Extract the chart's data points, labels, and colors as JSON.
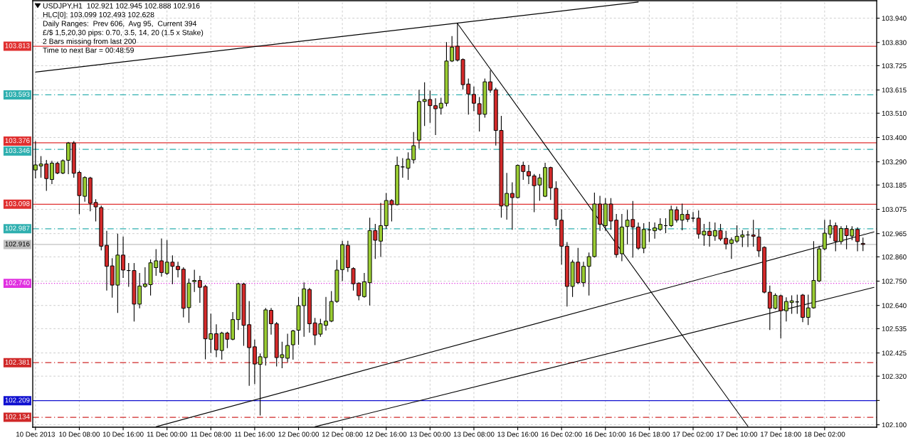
{
  "chart_data": {
    "type": "candlestick",
    "title": "USDJPY,H1  102.921 102.945 102.888 102.916",
    "annotations": [
      "HLC[0]: 103.099 102.493 102.628",
      "Daily Ranges:  Prev 606,  Avg 95,  Current 394",
      "£/$ 1,5,20,30 pips: 0.70, 3.5, 14, 20 (1.5 x Stake)",
      "2 Bars missing from last 200",
      "Time to next Bar = 00:48:59"
    ],
    "categories": [
      "10 Dec 2013",
      null,
      null,
      null,
      null,
      null,
      null,
      null,
      "10 Dec 08:00",
      null,
      null,
      null,
      null,
      null,
      null,
      null,
      "10 Dec 16:00",
      null,
      null,
      null,
      null,
      null,
      null,
      null,
      "11 Dec 00:00",
      null,
      null,
      null,
      null,
      null,
      null,
      null,
      "11 Dec 08:00",
      null,
      null,
      null,
      null,
      null,
      null,
      null,
      "11 Dec 16:00",
      null,
      null,
      null,
      null,
      null,
      null,
      null,
      "12 Dec 00:00",
      null,
      null,
      null,
      null,
      null,
      null,
      null,
      "12 Dec 08:00",
      null,
      null,
      null,
      null,
      null,
      null,
      null,
      "12 Dec 16:00",
      null,
      null,
      null,
      null,
      null,
      null,
      null,
      "13 Dec 00:00",
      null,
      null,
      null,
      null,
      null,
      null,
      null,
      "13 Dec 08:00",
      null,
      null,
      null,
      null,
      null,
      null,
      null,
      "13 Dec 16:00",
      null,
      null,
      null,
      null,
      null,
      null,
      null,
      "16 Dec 02:00",
      null,
      null,
      null,
      null,
      null,
      null,
      null,
      "16 Dec 10:00",
      null,
      null,
      null,
      null,
      null,
      null,
      null,
      "16 Dec 18:00",
      null,
      null,
      null,
      null,
      null,
      null,
      null,
      "17 Dec 02:00",
      null,
      null,
      null,
      null,
      null,
      null,
      null,
      "17 Dec 10:00",
      null,
      null,
      null,
      null,
      null,
      null,
      null,
      "17 Dec 18:00",
      null,
      null,
      null,
      null,
      null,
      null,
      null,
      "18 Dec 02:00",
      null,
      null,
      null,
      null,
      null,
      null,
      null,
      null,
      null
    ],
    "ohlc": [
      [
        103.253,
        103.382,
        103.217,
        103.276
      ],
      [
        103.271,
        103.314,
        103.22,
        103.28
      ],
      [
        103.28,
        103.297,
        103.16,
        103.214
      ],
      [
        103.21,
        103.293,
        103.191,
        103.284
      ],
      [
        103.283,
        103.289,
        103.236,
        103.239
      ],
      [
        103.239,
        103.299,
        103.236,
        103.295
      ],
      [
        103.297,
        103.378,
        103.236,
        103.375
      ],
      [
        103.375,
        103.382,
        103.22,
        103.238
      ],
      [
        103.242,
        103.248,
        103.055,
        103.137
      ],
      [
        103.134,
        103.223,
        103.111,
        103.219
      ],
      [
        103.217,
        103.22,
        103.068,
        103.102
      ],
      [
        103.106,
        103.119,
        103.022,
        103.086
      ],
      [
        103.083,
        103.09,
        102.891,
        102.908
      ],
      [
        102.912,
        102.976,
        102.709,
        102.817
      ],
      [
        102.819,
        102.852,
        102.677,
        102.732
      ],
      [
        102.732,
        102.963,
        102.608,
        102.868
      ],
      [
        102.868,
        102.95,
        102.766,
        102.8
      ],
      [
        102.798,
        102.83,
        102.726,
        102.798
      ],
      [
        102.798,
        102.83,
        102.569,
        102.646
      ],
      [
        102.646,
        102.785,
        102.629,
        102.728
      ],
      [
        102.726,
        102.811,
        102.722,
        102.737
      ],
      [
        102.734,
        102.846,
        102.687,
        102.833
      ],
      [
        102.811,
        102.893,
        102.776,
        102.842
      ],
      [
        102.842,
        102.941,
        102.772,
        102.789
      ],
      [
        102.785,
        102.934,
        102.779,
        102.836
      ],
      [
        102.836,
        102.865,
        102.738,
        102.817
      ],
      [
        102.817,
        102.836,
        102.769,
        102.802
      ],
      [
        102.804,
        102.811,
        102.588,
        102.627
      ],
      [
        102.63,
        102.76,
        102.563,
        102.741
      ],
      [
        102.748,
        102.8,
        102.703,
        102.753
      ],
      [
        102.753,
        102.772,
        102.654,
        102.722
      ],
      [
        102.726,
        102.731,
        102.398,
        102.489
      ],
      [
        102.487,
        102.601,
        102.426,
        102.512
      ],
      [
        102.512,
        102.553,
        102.408,
        102.439
      ],
      [
        102.436,
        102.519,
        102.396,
        102.515
      ],
      [
        102.515,
        102.519,
        102.449,
        102.487
      ],
      [
        102.487,
        102.608,
        102.484,
        102.576
      ],
      [
        102.576,
        102.741,
        102.531,
        102.738
      ],
      [
        102.737,
        102.741,
        102.459,
        102.55
      ],
      [
        102.553,
        102.658,
        102.278,
        102.449
      ],
      [
        102.453,
        102.484,
        102.286,
        102.375
      ],
      [
        102.373,
        102.421,
        102.144,
        102.408
      ],
      [
        102.404,
        102.627,
        102.37,
        102.62
      ],
      [
        102.618,
        102.627,
        102.51,
        102.557
      ],
      [
        102.557,
        102.563,
        102.366,
        102.404
      ],
      [
        102.404,
        102.474,
        102.358,
        102.417
      ],
      [
        102.401,
        102.51,
        102.385,
        102.459
      ],
      [
        102.462,
        102.528,
        102.396,
        102.525
      ],
      [
        102.528,
        102.677,
        102.464,
        102.639
      ],
      [
        102.639,
        102.743,
        102.5,
        102.715
      ],
      [
        102.712,
        102.718,
        102.519,
        102.557
      ],
      [
        102.561,
        102.582,
        102.462,
        102.506
      ],
      [
        102.51,
        102.578,
        102.5,
        102.557
      ],
      [
        102.55,
        102.677,
        102.528,
        102.569
      ],
      [
        102.569,
        102.703,
        102.566,
        102.658
      ],
      [
        102.658,
        102.845,
        102.654,
        102.8
      ],
      [
        102.802,
        102.931,
        102.753,
        102.915
      ],
      [
        102.912,
        102.931,
        102.794,
        102.811
      ],
      [
        102.807,
        102.811,
        102.709,
        102.738
      ],
      [
        102.741,
        102.743,
        102.665,
        102.684
      ],
      [
        102.68,
        102.785,
        102.677,
        102.747
      ],
      [
        102.743,
        103.035,
        102.642,
        102.979
      ],
      [
        102.979,
        103.007,
        102.852,
        102.935
      ],
      [
        102.931,
        103.102,
        102.861,
        103.001
      ],
      [
        103.001,
        103.147,
        102.988,
        103.115
      ],
      [
        103.115,
        103.119,
        103.022,
        103.096
      ],
      [
        103.096,
        103.312,
        103.094,
        103.274
      ],
      [
        103.267,
        103.305,
        103.22,
        103.267
      ],
      [
        103.261,
        103.331,
        103.21,
        103.302
      ],
      [
        103.299,
        103.423,
        103.284,
        103.363
      ],
      [
        103.388,
        103.614,
        103.352,
        103.563
      ],
      [
        103.563,
        103.648,
        103.454,
        103.572
      ],
      [
        103.572,
        103.61,
        103.468,
        103.544
      ],
      [
        103.544,
        103.576,
        103.413,
        103.53
      ],
      [
        103.533,
        103.578,
        103.505,
        103.555
      ],
      [
        103.555,
        103.83,
        103.543,
        103.746
      ],
      [
        103.746,
        103.857,
        103.743,
        103.809
      ],
      [
        103.813,
        103.915,
        103.746,
        103.75
      ],
      [
        103.753,
        103.756,
        103.619,
        103.639
      ],
      [
        103.642,
        103.665,
        103.505,
        103.597
      ],
      [
        103.595,
        103.629,
        103.521,
        103.555
      ],
      [
        103.553,
        103.581,
        103.429,
        103.505
      ],
      [
        103.505,
        103.665,
        103.492,
        103.652
      ],
      [
        103.652,
        103.703,
        103.604,
        103.614
      ],
      [
        103.616,
        103.623,
        103.365,
        103.432
      ],
      [
        103.432,
        103.496,
        103.039,
        103.09
      ],
      [
        103.09,
        103.238,
        103.03,
        103.147
      ],
      [
        103.147,
        103.195,
        102.984,
        103.128
      ],
      [
        103.128,
        103.276,
        103.127,
        103.274
      ],
      [
        103.274,
        103.289,
        103.21,
        103.246
      ],
      [
        103.246,
        103.274,
        103.191,
        103.226
      ],
      [
        103.226,
        103.233,
        103.064,
        103.182
      ],
      [
        103.185,
        103.233,
        103.115,
        103.217
      ],
      [
        103.134,
        103.284,
        103.132,
        103.264
      ],
      [
        103.264,
        103.266,
        103.119,
        103.172
      ],
      [
        103.17,
        103.2,
        103.001,
        103.03
      ],
      [
        103.026,
        103.073,
        102.827,
        102.908
      ],
      [
        102.908,
        102.925,
        102.637,
        102.726
      ],
      [
        102.726,
        102.845,
        102.68,
        102.836
      ],
      [
        102.836,
        102.899,
        102.738,
        102.743
      ],
      [
        102.743,
        102.836,
        102.726,
        102.817
      ],
      [
        102.817,
        102.878,
        102.687,
        102.861
      ],
      [
        102.861,
        103.149,
        102.859,
        103.099
      ],
      [
        103.099,
        103.134,
        102.979,
        103.007
      ],
      [
        103.001,
        103.124,
        102.979,
        103.099
      ],
      [
        103.099,
        103.124,
        102.984,
        103.022
      ],
      [
        103.026,
        103.052,
        102.858,
        102.87
      ],
      [
        102.874,
        103.052,
        102.842,
        102.995
      ],
      [
        102.997,
        103.071,
        102.918,
        103.026
      ],
      [
        103.029,
        103.111,
        102.858,
        102.995
      ],
      [
        102.995,
        103.014,
        102.893,
        102.899
      ],
      [
        102.899,
        103.01,
        102.878,
        102.984
      ],
      [
        102.982,
        103.017,
        102.929,
        102.982
      ],
      [
        102.978,
        103.014,
        102.944,
        102.991
      ],
      [
        102.984,
        103.033,
        102.979,
        103.007
      ],
      [
        103.001,
        103.033,
        102.969,
        103.001
      ],
      [
        103.001,
        103.09,
        102.997,
        103.073
      ],
      [
        103.073,
        103.086,
        103.017,
        103.026
      ],
      [
        103.026,
        103.099,
        102.982,
        103.052
      ],
      [
        103.052,
        103.071,
        103.02,
        103.03
      ],
      [
        103.035,
        103.061,
        103.02,
        103.035
      ],
      [
        103.035,
        103.068,
        102.944,
        102.963
      ],
      [
        102.959,
        103.007,
        102.912,
        102.976
      ],
      [
        102.976,
        103.017,
        102.908,
        102.956
      ],
      [
        102.954,
        103.014,
        102.934,
        102.979
      ],
      [
        102.979,
        103.007,
        102.934,
        102.941
      ],
      [
        102.944,
        102.976,
        102.896,
        102.918
      ],
      [
        102.921,
        102.946,
        102.852,
        102.937
      ],
      [
        102.931,
        103.001,
        102.925,
        102.953
      ],
      [
        102.95,
        102.979,
        102.906,
        102.959
      ],
      [
        102.959,
        102.976,
        102.906,
        102.959
      ],
      [
        102.959,
        103.026,
        102.908,
        102.953
      ],
      [
        102.95,
        102.984,
        102.861,
        102.887
      ],
      [
        102.903,
        102.906,
        102.696,
        102.7
      ],
      [
        102.7,
        102.728,
        102.531,
        102.627
      ],
      [
        102.627,
        102.693,
        102.624,
        102.686
      ],
      [
        102.684,
        102.687,
        102.493,
        102.616
      ],
      [
        102.616,
        102.675,
        102.569,
        102.658
      ],
      [
        102.653,
        102.684,
        102.604,
        102.661
      ],
      [
        102.656,
        102.687,
        102.604,
        102.656
      ],
      [
        102.687,
        102.69,
        102.566,
        102.586
      ],
      [
        102.586,
        102.687,
        102.553,
        102.629
      ],
      [
        102.629,
        102.929,
        102.627,
        102.753
      ],
      [
        102.751,
        102.908,
        102.747,
        102.896
      ],
      [
        102.896,
        103.026,
        102.891,
        102.967
      ],
      [
        102.963,
        103.026,
        102.946,
        103.001
      ],
      [
        103.001,
        103.014,
        102.887,
        102.931
      ],
      [
        102.929,
        102.997,
        102.918,
        102.988
      ],
      [
        102.988,
        103.001,
        102.896,
        102.956
      ],
      [
        102.954,
        102.997,
        102.937,
        102.984
      ],
      [
        102.984,
        102.992,
        102.887,
        102.929
      ],
      [
        102.921,
        102.945,
        102.888,
        102.916
      ],
      null,
      null
    ],
    "colors": [
      "#9acd32",
      "#9acd32",
      "#d42a2a",
      "#9acd32",
      "#d42a2a",
      "#9acd32",
      "#9acd32",
      "#d42a2a",
      "#d42a2a",
      "#9acd32",
      "#d42a2a",
      "#d42a2a",
      "#d42a2a",
      "#d42a2a",
      "#d42a2a",
      "#9acd32",
      "#d42a2a",
      "#000000",
      "#d42a2a",
      "#9acd32",
      "#9acd32",
      "#9acd32",
      "#9acd32",
      "#d42a2a",
      "#9acd32",
      "#d42a2a",
      "#d42a2a",
      "#d42a2a",
      "#9acd32",
      "#9acd32",
      "#d42a2a",
      "#d42a2a",
      "#9acd32",
      "#d42a2a",
      "#9acd32",
      "#d42a2a",
      "#9acd32",
      "#9acd32",
      "#d42a2a",
      "#d42a2a",
      "#d42a2a",
      "#9acd32",
      "#9acd32",
      "#d42a2a",
      "#d42a2a",
      "#9acd32",
      "#9acd32",
      "#9acd32",
      "#9acd32",
      "#9acd32",
      "#d42a2a",
      "#d42a2a",
      "#9acd32",
      "#9acd32",
      "#9acd32",
      "#9acd32",
      "#9acd32",
      "#d42a2a",
      "#d42a2a",
      "#d42a2a",
      "#9acd32",
      "#9acd32",
      "#d42a2a",
      "#9acd32",
      "#9acd32",
      "#d42a2a",
      "#9acd32",
      "#000000",
      "#9acd32",
      "#9acd32",
      "#9acd32",
      "#9acd32",
      "#d42a2a",
      "#d42a2a",
      "#9acd32",
      "#9acd32",
      "#9acd32",
      "#d42a2a",
      "#d42a2a",
      "#d42a2a",
      "#d42a2a",
      "#d42a2a",
      "#9acd32",
      "#d42a2a",
      "#d42a2a",
      "#d42a2a",
      "#9acd32",
      "#d42a2a",
      "#9acd32",
      "#d42a2a",
      "#d42a2a",
      "#d42a2a",
      "#9acd32",
      "#9acd32",
      "#d42a2a",
      "#d42a2a",
      "#d42a2a",
      "#d42a2a",
      "#9acd32",
      "#d42a2a",
      "#9acd32",
      "#9acd32",
      "#9acd32",
      "#d42a2a",
      "#9acd32",
      "#d42a2a",
      "#d42a2a",
      "#9acd32",
      "#9acd32",
      "#d42a2a",
      "#d42a2a",
      "#9acd32",
      "#000000",
      "#9acd32",
      "#9acd32",
      "#000000",
      "#9acd32",
      "#d42a2a",
      "#9acd32",
      "#d42a2a",
      "#000000",
      "#d42a2a",
      "#9acd32",
      "#d42a2a",
      "#9acd32",
      "#d42a2a",
      "#d42a2a",
      "#9acd32",
      "#9acd32",
      "#9acd32",
      "#000000",
      "#d42a2a",
      "#d42a2a",
      "#d42a2a",
      "#d42a2a",
      "#9acd32",
      "#d42a2a",
      "#9acd32",
      "#9acd32",
      "#000000",
      "#d42a2a",
      "#9acd32",
      "#9acd32",
      "#9acd32",
      "#9acd32",
      "#9acd32",
      "#d42a2a",
      "#9acd32",
      "#d42a2a",
      "#9acd32",
      "#d42a2a",
      "#d42a2a",
      null,
      null
    ],
    "series": [
      {
        "type": "line",
        "color": "#000000",
        "values": [
          103.696,
          null,
          null,
          null,
          null,
          null,
          null,
          null,
          null,
          null,
          null,
          null,
          null,
          null,
          null,
          null,
          null,
          null,
          null,
          null,
          null,
          null,
          null,
          null,
          null,
          null,
          null,
          null,
          null,
          null,
          null,
          null,
          null,
          null,
          null,
          null,
          null,
          null,
          null,
          null,
          null,
          null,
          null,
          null,
          null,
          null,
          null,
          null,
          null,
          null,
          null,
          null,
          null,
          null,
          null,
          null,
          null,
          null,
          null,
          null,
          null,
          null,
          null,
          null,
          null,
          null,
          null,
          null,
          null,
          null,
          null,
          null,
          null,
          null,
          null,
          null,
          null,
          null,
          null,
          null,
          null,
          null,
          null,
          null,
          null,
          null,
          null,
          null,
          null,
          null,
          null,
          null,
          null,
          null,
          null,
          null,
          null,
          null,
          null,
          null,
          null,
          null,
          null,
          null,
          null,
          null,
          null,
          null,
          null,
          null,
          104.013,
          null,
          null,
          null,
          null,
          null,
          null,
          null,
          null,
          null,
          null,
          null,
          null,
          null,
          null,
          null,
          null,
          null,
          null,
          null,
          null,
          null,
          null,
          null,
          null,
          null,
          null,
          null,
          null,
          null,
          null,
          null,
          null,
          null,
          null,
          null,
          null,
          null,
          null,
          null,
          null,
          null,
          null,
          null
        ]
      },
      {
        "type": "line",
        "color": "#000000",
        "values": [
          null,
          null,
          null,
          null,
          null,
          null,
          null,
          null,
          null,
          null,
          null,
          null,
          null,
          null,
          null,
          null,
          null,
          null,
          null,
          null,
          null,
          null,
          null,
          null,
          null,
          null,
          null,
          null,
          null,
          null,
          null,
          null,
          null,
          null,
          null,
          null,
          null,
          null,
          null,
          null,
          null,
          null,
          null,
          null,
          null,
          null,
          null,
          null,
          null,
          null,
          null,
          null,
          null,
          null,
          null,
          null,
          null,
          null,
          null,
          null,
          null,
          null,
          null,
          null,
          null,
          null,
          null,
          null,
          null,
          null,
          null,
          null,
          null,
          null,
          null,
          null,
          null,
          103.916,
          null,
          null,
          null,
          null,
          null,
          null,
          null,
          null,
          null,
          null,
          null,
          null,
          null,
          null,
          null,
          null,
          null,
          null,
          null,
          null,
          null,
          null,
          null,
          null,
          null,
          null,
          null,
          null,
          null,
          null,
          null,
          null,
          null,
          null,
          null,
          null,
          null,
          null,
          null,
          null,
          null,
          null,
          null,
          null,
          null,
          null,
          null,
          null,
          null,
          null,
          null,
          null,
          102.093,
          null,
          null,
          null,
          null,
          null,
          null,
          null,
          null,
          null,
          null,
          null,
          null,
          null,
          null,
          null,
          null,
          null,
          null,
          null,
          null,
          null,
          null,
          null
        ]
      },
      {
        "type": "line",
        "color": "#000000",
        "values": [
          null,
          null,
          null,
          null,
          null,
          null,
          null,
          null,
          null,
          null,
          null,
          null,
          null,
          null,
          null,
          null,
          null,
          null,
          null,
          null,
          null,
          null,
          102.091,
          null,
          null,
          null,
          null,
          null,
          null,
          null,
          null,
          null,
          null,
          null,
          null,
          null,
          null,
          null,
          null,
          null,
          null,
          null,
          null,
          null,
          null,
          null,
          null,
          null,
          null,
          null,
          null,
          null,
          null,
          null,
          null,
          null,
          null,
          null,
          null,
          null,
          null,
          null,
          null,
          null,
          null,
          null,
          null,
          null,
          null,
          null,
          null,
          null,
          null,
          null,
          null,
          null,
          null,
          null,
          null,
          null,
          null,
          null,
          null,
          null,
          null,
          null,
          null,
          null,
          null,
          null,
          null,
          null,
          null,
          null,
          null,
          null,
          null,
          null,
          null,
          null,
          null,
          null,
          null,
          null,
          null,
          null,
          null,
          null,
          null,
          null,
          null,
          null,
          null,
          null,
          null,
          null,
          null,
          null,
          null,
          null,
          null,
          null,
          null,
          null,
          null,
          null,
          null,
          null,
          null,
          null,
          null,
          null,
          null,
          null,
          null,
          null,
          null,
          null,
          null,
          null,
          null,
          null,
          null,
          null,
          null,
          null,
          null,
          null,
          null,
          null,
          null,
          null,
          null,
          102.973
        ]
      },
      {
        "type": "line",
        "color": "#000000",
        "values": [
          null,
          null,
          null,
          null,
          null,
          null,
          null,
          null,
          null,
          null,
          null,
          null,
          null,
          null,
          null,
          null,
          null,
          null,
          null,
          null,
          null,
          null,
          null,
          null,
          null,
          null,
          null,
          null,
          null,
          null,
          null,
          null,
          null,
          null,
          null,
          null,
          null,
          null,
          null,
          null,
          null,
          null,
          null,
          null,
          null,
          null,
          null,
          null,
          null,
          null,
          null,
          102.091,
          null,
          null,
          null,
          null,
          null,
          null,
          null,
          null,
          null,
          null,
          null,
          null,
          null,
          null,
          null,
          null,
          null,
          null,
          null,
          null,
          null,
          null,
          null,
          null,
          null,
          null,
          null,
          null,
          null,
          null,
          null,
          null,
          null,
          null,
          null,
          null,
          null,
          null,
          null,
          null,
          null,
          null,
          null,
          null,
          null,
          null,
          null,
          null,
          null,
          null,
          null,
          null,
          null,
          null,
          null,
          null,
          null,
          null,
          null,
          null,
          null,
          null,
          null,
          null,
          null,
          null,
          null,
          null,
          null,
          null,
          null,
          null,
          null,
          null,
          null,
          null,
          null,
          null,
          null,
          null,
          null,
          null,
          null,
          null,
          null,
          null,
          null,
          null,
          null,
          null,
          null,
          null,
          null,
          null,
          null,
          null,
          null,
          null,
          null,
          null,
          null,
          102.722
        ]
      }
    ],
    "ylim": [
      102.089,
      104.019
    ],
    "yticks": [
      {
        "value": 103.94,
        "label": "103.940"
      },
      {
        "value": 103.83,
        "label": "103.830"
      },
      103.725,
      103.615,
      {
        "value": 103.51,
        "label": "103.510"
      },
      {
        "value": 103.4,
        "label": "103.400"
      },
      {
        "value": 103.29,
        "label": "103.290"
      },
      103.185,
      103.075,
      102.965,
      {
        "value": 102.86,
        "label": "102.860"
      },
      {
        "value": 102.75,
        "label": "102.750"
      },
      {
        "value": 102.64,
        "label": "102.640"
      },
      102.535,
      102.425,
      {
        "value": 102.32,
        "label": "102.320"
      },
      {
        "value": 102.21,
        "label": null
      },
      {
        "value": 102.1,
        "label": "102.100"
      }
    ],
    "ref_lines": [
      {
        "axis": "y",
        "value": 103.813,
        "label": "103.813",
        "color": "#e03030",
        "line_style": "solid"
      },
      {
        "axis": "y",
        "value": 103.593,
        "label": "103.593",
        "color": "#30b0b0",
        "line_style": "dashdot"
      },
      {
        "axis": "y",
        "value": 103.376,
        "label": "103.376",
        "color": "#e03030",
        "line_style": "solid"
      },
      {
        "axis": "y",
        "value": 103.346,
        "label": "103.346",
        "color": "#30b0b0",
        "line_style": "dashdot"
      },
      {
        "axis": "y",
        "value": 103.098,
        "label": "103.098",
        "color": "#e03030",
        "line_style": "solid"
      },
      {
        "axis": "y",
        "value": 102.987,
        "label": "102.987",
        "color": "#30b0b0",
        "line_style": "dashdot"
      },
      {
        "axis": "y",
        "value": 102.916,
        "label": "102.916",
        "color": "#c0c0c0",
        "line_style": "solid"
      },
      {
        "axis": "y",
        "value": 102.74,
        "label": "102.740",
        "color": "#e030e0",
        "line_style": "dotted"
      },
      {
        "axis": "y",
        "value": 102.381,
        "label": "102.381",
        "color": "#d02828",
        "line_style": "dashdot"
      },
      {
        "axis": "y",
        "value": 102.209,
        "label": "102.209",
        "color": "#1010d0",
        "line_style": "solid"
      },
      {
        "axis": "y",
        "value": 102.134,
        "label": "102.134",
        "color": "#d02828",
        "line_style": "dashdot"
      }
    ],
    "grid": true
  }
}
